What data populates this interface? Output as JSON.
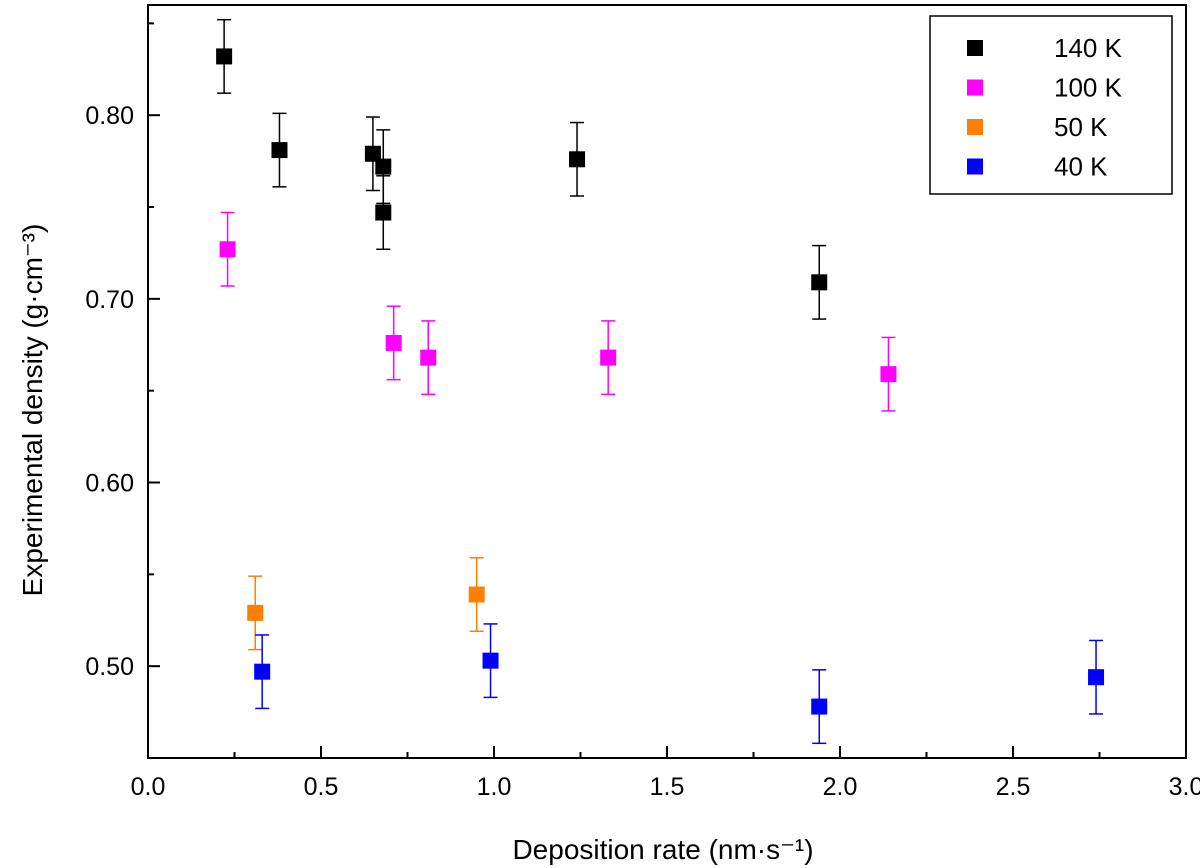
{
  "chart_data": {
    "type": "scatter",
    "xlabel": "Deposition rate (nm·s⁻¹)",
    "ylabel": "Experimental density (g·cm⁻³)",
    "xlim": [
      0.0,
      3.0
    ],
    "ylim": [
      0.45,
      0.86
    ],
    "x_ticks": [
      "0.0",
      "0.5",
      "1.0",
      "1.5",
      "2.0",
      "2.5",
      "3.0"
    ],
    "y_ticks": [
      "0.50",
      "0.60",
      "0.70",
      "0.80"
    ],
    "grid": false,
    "legend_position": "top-right",
    "error": 0.02,
    "series": [
      {
        "name": "140 K",
        "color": "#000000",
        "points": [
          [
            0.22,
            0.832
          ],
          [
            0.38,
            0.781
          ],
          [
            0.65,
            0.779
          ],
          [
            0.68,
            0.772
          ],
          [
            0.68,
            0.747
          ],
          [
            1.24,
            0.776
          ],
          [
            1.94,
            0.709
          ]
        ]
      },
      {
        "name": "100 K",
        "color": "#ff00ff",
        "points": [
          [
            0.23,
            0.727
          ],
          [
            0.71,
            0.676
          ],
          [
            0.81,
            0.668
          ],
          [
            1.33,
            0.668
          ],
          [
            2.14,
            0.659
          ]
        ]
      },
      {
        "name": "50 K",
        "color": "#ff7f00",
        "points": [
          [
            0.31,
            0.529
          ],
          [
            0.95,
            0.539
          ]
        ]
      },
      {
        "name": "40 K",
        "color": "#0000ff",
        "points": [
          [
            0.33,
            0.497
          ],
          [
            0.99,
            0.503
          ],
          [
            1.94,
            0.478
          ],
          [
            2.74,
            0.494
          ]
        ]
      }
    ]
  }
}
